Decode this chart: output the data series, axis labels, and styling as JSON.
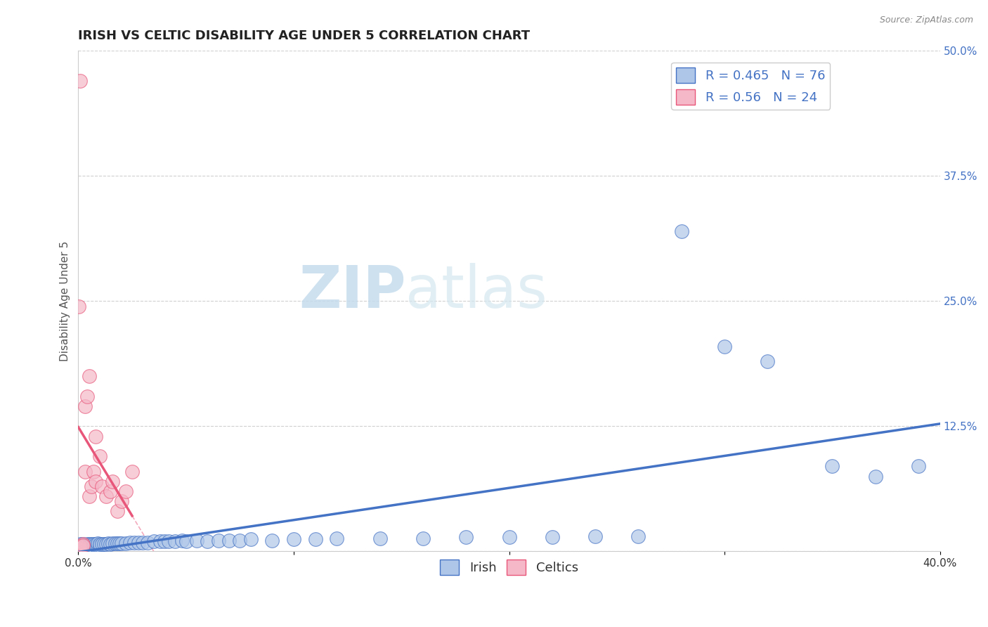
{
  "title": "IRISH VS CELTIC DISABILITY AGE UNDER 5 CORRELATION CHART",
  "source": "Source: ZipAtlas.com",
  "ylabel": "Disability Age Under 5",
  "xlim": [
    0.0,
    0.4
  ],
  "ylim": [
    0.0,
    0.5
  ],
  "xticks": [
    0.0,
    0.1,
    0.2,
    0.3,
    0.4
  ],
  "xtick_labels": [
    "0.0%",
    "",
    "",
    "",
    "40.0%"
  ],
  "ytick_labels_right": [
    "",
    "12.5%",
    "25.0%",
    "37.5%",
    "50.0%"
  ],
  "yticks_right": [
    0.0,
    0.125,
    0.25,
    0.375,
    0.5
  ],
  "irish_R": 0.465,
  "irish_N": 76,
  "celtic_R": 0.56,
  "celtic_N": 24,
  "irish_color": "#aec6e8",
  "celtic_color": "#f5b8c8",
  "irish_line_color": "#4472c4",
  "celtic_line_color": "#e8577a",
  "watermark_zip": "ZIP",
  "watermark_atlas": "atlas",
  "background_color": "#ffffff",
  "grid_color": "#d0d0d0",
  "title_fontsize": 13,
  "label_fontsize": 11,
  "tick_fontsize": 11,
  "legend_fontsize": 13
}
